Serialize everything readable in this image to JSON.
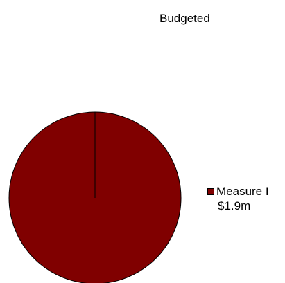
{
  "chart_data": {
    "type": "pie",
    "title": "Budgeted",
    "slices": [
      {
        "label": "Measure I",
        "value": 1.9,
        "value_label": "$1.9m",
        "color": "#800000"
      }
    ],
    "legend_position": "right"
  }
}
